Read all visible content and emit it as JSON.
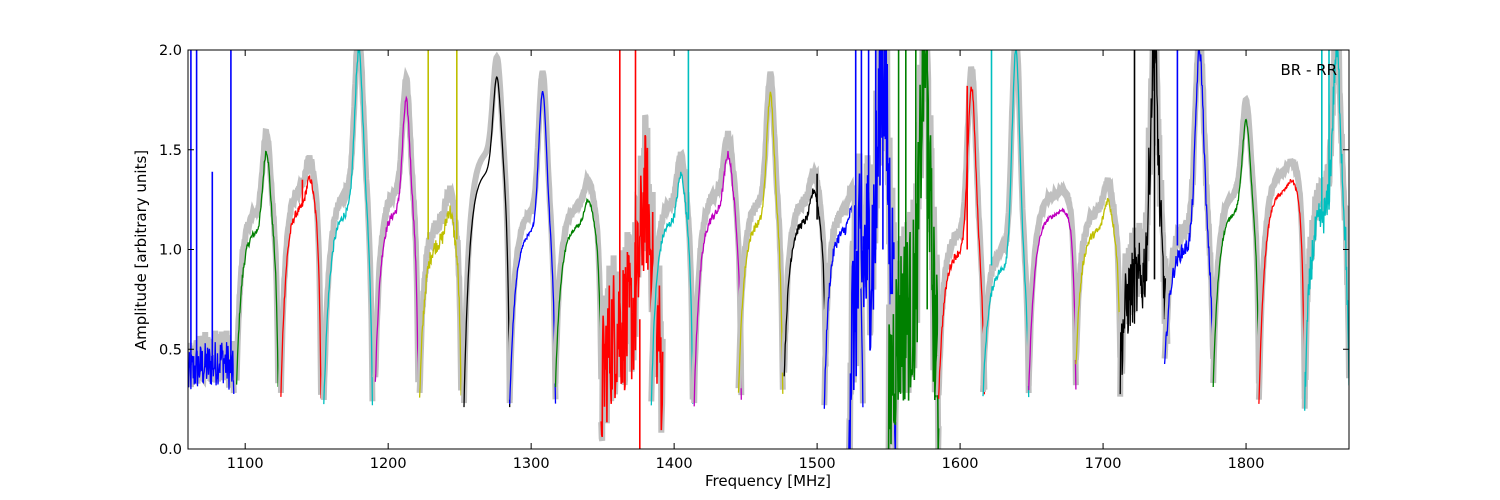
{
  "chart_data": {
    "type": "line",
    "annotation": "BR - RR",
    "xlabel": "Frequency [MHz]",
    "ylabel": "Amplitude [arbitrary units]",
    "xlim": [
      1060,
      1872
    ],
    "ylim": [
      0.0,
      2.0
    ],
    "x_ticks": [
      1100,
      1200,
      1300,
      1400,
      1500,
      1600,
      1700,
      1800
    ],
    "y_ticks": [
      "0.0",
      "0.5",
      "1.0",
      "1.5",
      "2.0"
    ],
    "grid": false,
    "background_color": "#c0c0c0",
    "band_colors": [
      "#0000ff",
      "#008000",
      "#ff0000",
      "#00bfbf",
      "#bf00bf",
      "#bfbf00",
      "#000000"
    ],
    "bands": [
      {
        "x0": 1060,
        "x1": 1092,
        "color": "#0000ff",
        "edge": 0.35,
        "peak": 0.45,
        "plateau": 0.42,
        "noise": 0.12,
        "spikes": [
          [
            1062,
            2.0
          ],
          [
            1066,
            2.0
          ],
          [
            1077,
            1.39
          ],
          [
            1090,
            2.0
          ]
        ]
      },
      {
        "x0": 1094,
        "x1": 1123,
        "color": "#008000",
        "edge": 0.32,
        "peak": 1.5,
        "plateau": 1.1,
        "noise": 0.02,
        "spikes": []
      },
      {
        "x0": 1125,
        "x1": 1153,
        "color": "#ff0000",
        "edge": 0.26,
        "peak": 1.36,
        "plateau": 1.22,
        "noise": 0.02,
        "spikes": [
          [
            1140,
            1.35
          ]
        ]
      },
      {
        "x0": 1155,
        "x1": 1189,
        "color": "#00bfbf",
        "edge": 0.22,
        "peak": 2.0,
        "plateau": 1.2,
        "noise": 0.02,
        "spikes": []
      },
      {
        "x0": 1191,
        "x1": 1221,
        "color": "#bf00bf",
        "edge": 0.32,
        "peak": 1.75,
        "plateau": 1.2,
        "noise": 0.02,
        "spikes": []
      },
      {
        "x0": 1222,
        "x1": 1251,
        "color": "#bfbf00",
        "edge": 0.24,
        "peak": 1.2,
        "plateau": 1.05,
        "noise": 0.04,
        "spikes": [
          [
            1228,
            2.0
          ],
          [
            1248,
            2.0
          ]
        ]
      },
      {
        "x0": 1253,
        "x1": 1285,
        "color": "#000000",
        "edge": 0.21,
        "peak": 1.87,
        "plateau": 1.4,
        "noise": 0.0,
        "spikes": []
      },
      {
        "x0": 1285,
        "x1": 1317,
        "color": "#0000ff",
        "edge": 0.22,
        "peak": 1.8,
        "plateau": 1.1,
        "noise": 0.01,
        "spikes": []
      },
      {
        "x0": 1317,
        "x1": 1349,
        "color": "#008000",
        "edge": 0.32,
        "peak": 1.25,
        "plateau": 1.13,
        "noise": 0.01,
        "spikes": []
      },
      {
        "x0": 1349,
        "x1": 1392,
        "color": "#ff0000",
        "edge": 0.26,
        "peak": 1.25,
        "plateau": 0.65,
        "noise": 0.35,
        "spikes": [
          [
            1362,
            2.0
          ],
          [
            1373,
            2.0
          ],
          [
            1376,
            0.0
          ]
        ]
      },
      {
        "x0": 1384,
        "x1": 1413,
        "color": "#00bfbf",
        "edge": 0.22,
        "peak": 1.38,
        "plateau": 1.15,
        "noise": 0.02,
        "spikes": [
          [
            1410,
            2.0
          ]
        ]
      },
      {
        "x0": 1414,
        "x1": 1447,
        "color": "#bf00bf",
        "edge": 0.23,
        "peak": 1.48,
        "plateau": 1.2,
        "noise": 0.02,
        "spikes": []
      },
      {
        "x0": 1445,
        "x1": 1476,
        "color": "#bfbf00",
        "edge": 0.27,
        "peak": 1.78,
        "plateau": 1.15,
        "noise": 0.02,
        "spikes": []
      },
      {
        "x0": 1477,
        "x1": 1506,
        "color": "#000000",
        "edge": 0.37,
        "peak": 1.3,
        "plateau": 1.15,
        "noise": 0.02,
        "spikes": [
          [
            1500,
            1.38
          ]
        ]
      },
      {
        "x0": 1505,
        "x1": 1532,
        "color": "#0000ff",
        "edge": 0.21,
        "peak": 1.2,
        "plateau": 1.1,
        "noise": 0.03,
        "spikes": []
      },
      {
        "x0": 1522,
        "x1": 1555,
        "color": "#0000ff",
        "edge": 0.21,
        "peak": 2.0,
        "plateau": 1.0,
        "noise": 0.5,
        "spikes": [
          [
            1527,
            2.0
          ],
          [
            1531,
            2.0
          ],
          [
            1536,
            2.0
          ],
          [
            1541,
            2.0
          ],
          [
            1546,
            2.0
          ]
        ]
      },
      {
        "x0": 1550,
        "x1": 1585,
        "color": "#008000",
        "edge": 0.15,
        "peak": 2.0,
        "plateau": 0.7,
        "noise": 0.45,
        "spikes": [
          [
            1557,
            2.0
          ],
          [
            1562,
            2.0
          ],
          [
            1569,
            2.0
          ],
          [
            1577,
            2.0
          ]
        ]
      },
      {
        "x0": 1585,
        "x1": 1617,
        "color": "#ff0000",
        "edge": 0.26,
        "peak": 1.82,
        "plateau": 1.0,
        "noise": 0.02,
        "spikes": [
          [
            1605,
            1.82
          ]
        ]
      },
      {
        "x0": 1616,
        "x1": 1648,
        "color": "#00bfbf",
        "edge": 0.26,
        "peak": 2.0,
        "plateau": 0.92,
        "noise": 0.02,
        "spikes": [
          [
            1622,
            2.0
          ]
        ]
      },
      {
        "x0": 1648,
        "x1": 1681,
        "color": "#bf00bf",
        "edge": 0.29,
        "peak": 1.2,
        "plateau": 1.18,
        "noise": 0.01,
        "spikes": []
      },
      {
        "x0": 1681,
        "x1": 1712,
        "color": "#bfbf00",
        "edge": 0.42,
        "peak": 1.25,
        "plateau": 1.1,
        "noise": 0.02,
        "spikes": []
      },
      {
        "x0": 1712,
        "x1": 1745,
        "color": "#000000",
        "edge": 0.44,
        "peak": 2.0,
        "plateau": 0.85,
        "noise": 0.2,
        "spikes": [
          [
            1722,
            2.0
          ],
          [
            1736,
            2.0
          ]
        ]
      },
      {
        "x0": 1743,
        "x1": 1777,
        "color": "#0000ff",
        "edge": 0.39,
        "peak": 2.0,
        "plateau": 1.02,
        "noise": 0.04,
        "spikes": [
          [
            1752,
            2.0
          ]
        ]
      },
      {
        "x0": 1777,
        "x1": 1809,
        "color": "#008000",
        "edge": 0.31,
        "peak": 1.65,
        "plateau": 1.2,
        "noise": 0.01,
        "spikes": []
      },
      {
        "x0": 1809,
        "x1": 1841,
        "color": "#ff0000",
        "edge": 0.22,
        "peak": 1.35,
        "plateau": 1.3,
        "noise": 0.01,
        "spikes": []
      },
      {
        "x0": 1841,
        "x1": 1872,
        "color": "#00bfbf",
        "edge": 0.24,
        "peak": 2.0,
        "plateau": 1.2,
        "noise": 0.1,
        "spikes": [
          [
            1853,
            2.0
          ],
          [
            1858,
            2.0
          ]
        ]
      }
    ]
  }
}
